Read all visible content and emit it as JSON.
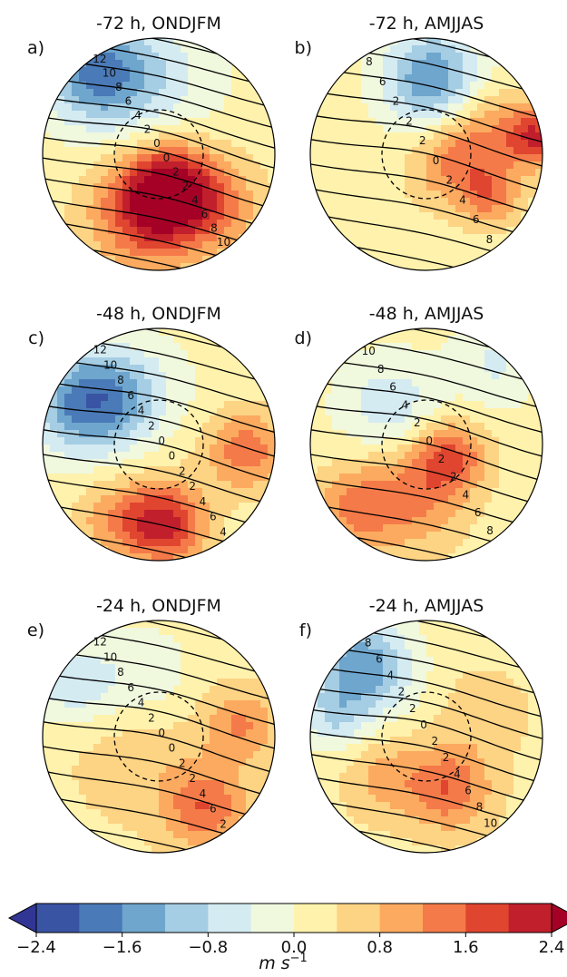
{
  "chart_data": [
    {
      "type": "heatmap",
      "panel_label": "a)",
      "title": "-72 h, ONDJFM",
      "filled_field": {
        "pattern": "dipole",
        "anomalies": [
          {
            "dx": -0.55,
            "dy": -0.7,
            "value": -1.6,
            "spread": 0.3
          },
          {
            "dx": -0.1,
            "dy": -0.65,
            "value": -0.8,
            "spread": 0.4
          },
          {
            "dx": 0.1,
            "dy": 0.32,
            "value": 2.3,
            "spread": 0.28
          },
          {
            "dx": -0.15,
            "dy": 0.55,
            "value": 1.3,
            "spread": 0.35
          },
          {
            "dx": 0.55,
            "dy": 0.45,
            "value": 0.8,
            "spread": 0.3
          }
        ],
        "background": 0.15
      },
      "contour_labels": [
        "12",
        "10",
        "8",
        "6",
        "4",
        "2",
        "0",
        "0",
        "2",
        "2",
        "4",
        "6",
        "8",
        "10"
      ],
      "contour_levels": [
        -12,
        -10,
        -8,
        -6,
        -4,
        -2,
        0,
        2,
        4,
        6,
        8,
        10
      ]
    },
    {
      "type": "heatmap",
      "panel_label": "b)",
      "title": "-72 h, AMJJAS",
      "filled_field": {
        "pattern": "dipole",
        "anomalies": [
          {
            "dx": 0.05,
            "dy": -0.65,
            "value": -1.8,
            "spread": 0.3
          },
          {
            "dx": 0.5,
            "dy": -0.2,
            "value": 0.9,
            "spread": 0.28
          },
          {
            "dx": 0.95,
            "dy": -0.15,
            "value": 1.7,
            "spread": 0.18
          },
          {
            "dx": 0.55,
            "dy": 0.35,
            "value": 1.1,
            "spread": 0.18
          },
          {
            "dx": 0.2,
            "dy": 0.1,
            "value": 0.9,
            "spread": 0.25
          }
        ],
        "background": 0.2
      },
      "contour_labels": [
        "8",
        "6",
        "2",
        "2",
        "2",
        "0",
        "2",
        "4",
        "6",
        "8"
      ],
      "contour_levels": [
        -10,
        -8,
        -6,
        -4,
        -2,
        0,
        2,
        4,
        6,
        8
      ]
    },
    {
      "type": "heatmap",
      "panel_label": "c)",
      "title": "-48 h, ONDJFM",
      "filled_field": {
        "pattern": "dipole",
        "anomalies": [
          {
            "dx": -0.65,
            "dy": -0.35,
            "value": -1.8,
            "spread": 0.3
          },
          {
            "dx": -0.25,
            "dy": -0.45,
            "value": -0.9,
            "spread": 0.3
          },
          {
            "dx": 0.05,
            "dy": 0.68,
            "value": 2.0,
            "spread": 0.25
          },
          {
            "dx": 0.75,
            "dy": 0.05,
            "value": 1.3,
            "spread": 0.25
          },
          {
            "dx": -0.4,
            "dy": 0.65,
            "value": 0.8,
            "spread": 0.25
          }
        ],
        "background": 0.15
      },
      "contour_labels": [
        "12",
        "10",
        "8",
        "6",
        "4",
        "2",
        "0",
        "0",
        "2",
        "2",
        "4",
        "6",
        "4"
      ],
      "contour_levels": [
        -12,
        -10,
        -8,
        -6,
        -4,
        -2,
        0,
        2,
        4,
        6
      ]
    },
    {
      "type": "heatmap",
      "panel_label": "d)",
      "title": "-48 h, AMJJAS",
      "filled_field": {
        "pattern": "dipole",
        "anomalies": [
          {
            "dx": -0.3,
            "dy": -0.3,
            "value": -0.9,
            "spread": 0.3
          },
          {
            "dx": 0.6,
            "dy": -0.7,
            "value": -0.6,
            "spread": 0.25
          },
          {
            "dx": 0.2,
            "dy": 0.1,
            "value": 1.4,
            "spread": 0.22
          },
          {
            "dx": -0.15,
            "dy": 0.45,
            "value": 1.1,
            "spread": 0.35
          },
          {
            "dx": -0.65,
            "dy": 0.55,
            "value": 0.9,
            "spread": 0.25
          }
        ],
        "background": 0.15
      },
      "contour_labels": [
        "10",
        "8",
        "6",
        "4",
        "2",
        "0",
        "2",
        "2",
        "4",
        "6",
        "8"
      ],
      "contour_levels": [
        -10,
        -8,
        -6,
        -4,
        -2,
        0,
        2,
        4,
        6,
        8
      ]
    },
    {
      "type": "heatmap",
      "panel_label": "e)",
      "title": "-24 h, ONDJFM",
      "filled_field": {
        "pattern": "dipole",
        "anomalies": [
          {
            "dx": -0.75,
            "dy": -0.45,
            "value": -0.9,
            "spread": 0.25
          },
          {
            "dx": -0.15,
            "dy": -0.55,
            "value": -0.6,
            "spread": 0.3
          },
          {
            "dx": 0.4,
            "dy": 0.6,
            "value": 1.3,
            "spread": 0.25
          },
          {
            "dx": 0.7,
            "dy": -0.1,
            "value": 1.0,
            "spread": 0.22
          },
          {
            "dx": -0.2,
            "dy": 0.2,
            "value": 0.4,
            "spread": 0.4
          }
        ],
        "background": 0.25
      },
      "contour_labels": [
        "12",
        "10",
        "8",
        "6",
        "4",
        "2",
        "0",
        "0",
        "2",
        "2",
        "4",
        "6",
        "2"
      ],
      "contour_levels": [
        -12,
        -10,
        -8,
        -6,
        -4,
        -2,
        0,
        2,
        4,
        6
      ]
    },
    {
      "type": "heatmap",
      "panel_label": "f)",
      "title": "-24 h, AMJJAS",
      "filled_field": {
        "pattern": "dipole",
        "anomalies": [
          {
            "dx": -0.55,
            "dy": -0.6,
            "value": -1.8,
            "spread": 0.3
          },
          {
            "dx": -0.8,
            "dy": -0.15,
            "value": -0.8,
            "spread": 0.2
          },
          {
            "dx": 0.2,
            "dy": 0.45,
            "value": 1.3,
            "spread": 0.25
          },
          {
            "dx": -0.35,
            "dy": 0.35,
            "value": 0.7,
            "spread": 0.25
          },
          {
            "dx": 0.5,
            "dy": -0.2,
            "value": 0.5,
            "spread": 0.25
          }
        ],
        "background": 0.25
      },
      "contour_labels": [
        "8",
        "6",
        "4",
        "2",
        "2",
        "0",
        "2",
        "2",
        "4",
        "6",
        "8",
        "10"
      ],
      "contour_levels": [
        -10,
        -8,
        -6,
        -4,
        -2,
        0,
        2,
        4,
        6,
        8,
        10
      ]
    }
  ],
  "colorbar": {
    "unit_label": "m s",
    "unit_exponent": "−1",
    "levels": [
      -2.4,
      -2.0,
      -1.6,
      -1.2,
      -0.8,
      -0.4,
      0.0,
      0.4,
      0.8,
      1.2,
      1.6,
      2.0,
      2.4
    ],
    "tick_labels": [
      "−2.4",
      "−1.6",
      "−0.8",
      "0.0",
      "0.8",
      "1.6",
      "2.4"
    ],
    "tick_values": [
      -2.4,
      -1.6,
      -0.8,
      0.0,
      0.8,
      1.6,
      2.4
    ],
    "colors": [
      "#3a54a4",
      "#4a7ab7",
      "#6fa6ce",
      "#a5cde3",
      "#d4ebf2",
      "#f0f8de",
      "#fff2ac",
      "#fdd384",
      "#fcaa5f",
      "#f57a49",
      "#e04530",
      "#c21f2c"
    ],
    "extend_min_color": "#313695",
    "extend_max_color": "#a50026"
  }
}
